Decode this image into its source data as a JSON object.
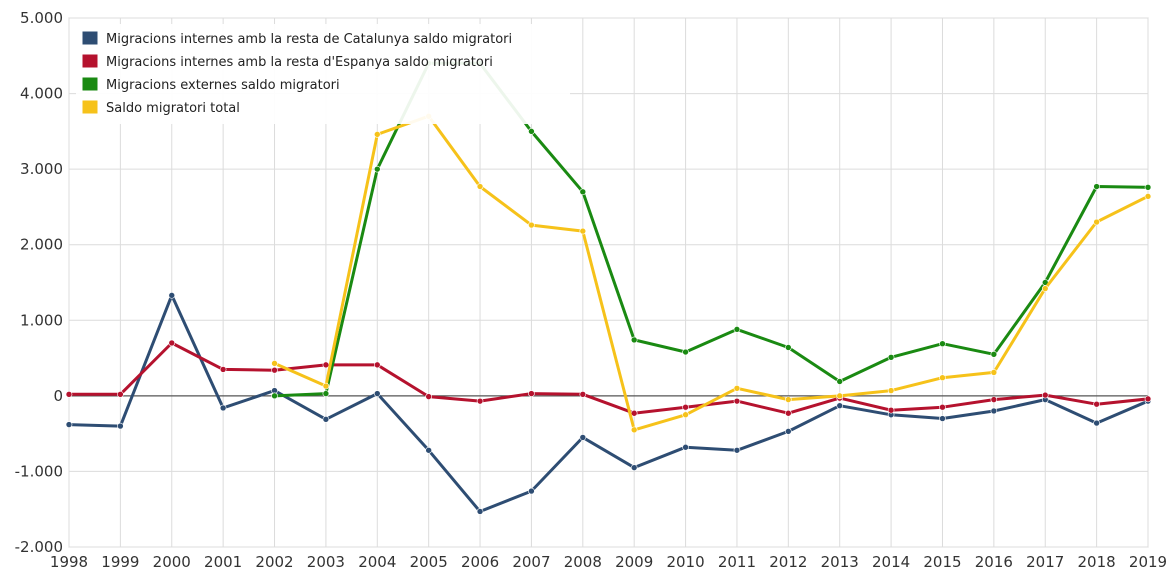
{
  "chart_data": {
    "type": "line",
    "title": "",
    "xlabel": "",
    "ylabel": "",
    "x": [
      "1998",
      "1999",
      "2000",
      "2001",
      "2002",
      "2003",
      "2004",
      "2005",
      "2006",
      "2007",
      "2008",
      "2009",
      "2010",
      "2011",
      "2012",
      "2013",
      "2014",
      "2015",
      "2016",
      "2017",
      "2018",
      "2019"
    ],
    "ylim": [
      -2000,
      5000
    ],
    "y_ticks": [
      -2000,
      -1000,
      0,
      1000,
      2000,
      3000,
      4000,
      5000
    ],
    "y_tick_labels": [
      "-2.000",
      "-1.000",
      "0",
      "1.000",
      "2.000",
      "3.000",
      "4.000",
      "5.000"
    ],
    "grid": true,
    "legend_position": "top-left",
    "series": [
      {
        "name": "Migracions internes amb la resta de Catalunya saldo migratori",
        "color": "#2e4d73",
        "values": [
          -380,
          -400,
          1330,
          -160,
          70,
          -310,
          30,
          -720,
          -1530,
          -1260,
          -550,
          -950,
          -680,
          -720,
          -470,
          -130,
          -250,
          -300,
          -200,
          -50,
          -360,
          -70
        ]
      },
      {
        "name": "Migracions internes amb la resta d'Espanya saldo migratori",
        "color": "#b5122e",
        "values": [
          20,
          20,
          700,
          350,
          340,
          410,
          410,
          -10,
          -70,
          30,
          20,
          -230,
          -150,
          -70,
          -230,
          -30,
          -190,
          -150,
          -50,
          10,
          -110,
          -40
        ]
      },
      {
        "name": "Migracions externes saldo migratori",
        "color": "#1a8a12",
        "values": [
          null,
          null,
          null,
          null,
          0,
          30,
          3000,
          4400,
          4400,
          3500,
          2700,
          740,
          580,
          880,
          640,
          190,
          510,
          690,
          550,
          1500,
          2770,
          2760
        ]
      },
      {
        "name": "Saldo migratori total",
        "color": "#f6c21a",
        "values": [
          null,
          null,
          null,
          null,
          430,
          130,
          3460,
          3700,
          2770,
          2260,
          2180,
          -450,
          -250,
          100,
          -50,
          0,
          70,
          240,
          310,
          1420,
          2300,
          2640
        ]
      }
    ]
  }
}
